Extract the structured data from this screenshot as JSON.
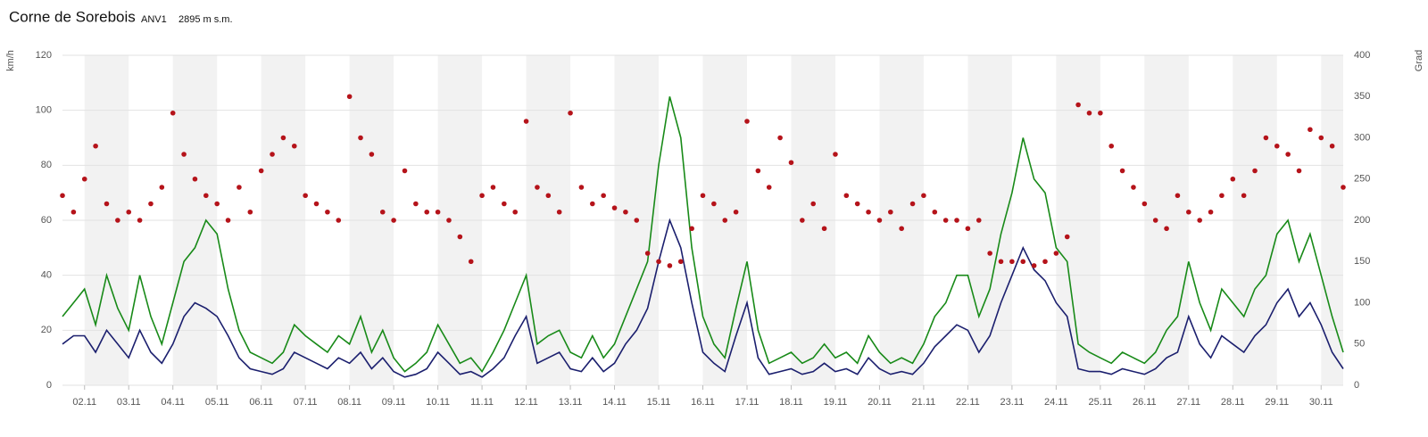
{
  "chart_data": {
    "type": "line",
    "title": "Corne de Sorebois",
    "subtitle": "ANV1",
    "elevation": "2895 m s.m.",
    "y_label": "km/h",
    "y2_label": "Grad",
    "ylim": [
      0,
      120
    ],
    "yticks": [
      0,
      20,
      40,
      60,
      80,
      100,
      120
    ],
    "y2lim": [
      0,
      400
    ],
    "y2ticks": [
      0,
      50,
      100,
      150,
      200,
      250,
      300,
      350,
      400
    ],
    "grid": true,
    "categories": [
      null,
      null,
      "02.11",
      null,
      null,
      null,
      "03.11",
      null,
      null,
      null,
      "04.11",
      null,
      null,
      null,
      "05.11",
      null,
      null,
      null,
      "06.11",
      null,
      null,
      null,
      "07.11",
      null,
      null,
      null,
      "08.11",
      null,
      null,
      null,
      "09.11",
      null,
      null,
      null,
      "10.11",
      null,
      null,
      null,
      "11.11",
      null,
      null,
      null,
      "12.11",
      null,
      null,
      null,
      "13.11",
      null,
      null,
      null,
      "14.11",
      null,
      null,
      null,
      "15.11",
      null,
      null,
      null,
      "16.11",
      null,
      null,
      null,
      "17.11",
      null,
      null,
      null,
      "18.11",
      null,
      null,
      null,
      "19.11",
      null,
      null,
      null,
      "20.11",
      null,
      null,
      null,
      "21.11",
      null,
      null,
      null,
      "22.11",
      null,
      null,
      null,
      "23.11",
      null,
      null,
      null,
      "24.11",
      null,
      null,
      null,
      "25.11",
      null,
      null,
      null,
      "26.11",
      null,
      null,
      null,
      "27.11",
      null,
      null,
      null,
      "28.11",
      null,
      null,
      null,
      "29.11",
      null,
      null,
      null,
      "30.11",
      null,
      null
    ],
    "series": [
      {
        "type": "line",
        "color": "#188a18",
        "values": [
          25,
          30,
          35,
          22,
          40,
          28,
          20,
          40,
          25,
          15,
          30,
          45,
          50,
          60,
          55,
          35,
          20,
          12,
          10,
          8,
          12,
          22,
          18,
          15,
          12,
          18,
          15,
          25,
          12,
          20,
          10,
          5,
          8,
          12,
          22,
          15,
          8,
          10,
          5,
          12,
          20,
          30,
          40,
          15,
          18,
          20,
          12,
          10,
          18,
          10,
          15,
          25,
          35,
          45,
          80,
          105,
          90,
          50,
          25,
          15,
          10,
          28,
          45,
          20,
          8,
          10,
          12,
          8,
          10,
          15,
          10,
          12,
          8,
          18,
          12,
          8,
          10,
          8,
          15,
          25,
          30,
          40,
          40,
          25,
          35,
          55,
          70,
          90,
          75,
          70,
          50,
          45,
          15,
          12,
          10,
          8,
          12,
          10,
          8,
          12,
          20,
          25,
          45,
          30,
          20,
          35,
          30,
          25,
          35,
          40,
          55,
          60,
          45,
          55,
          40,
          25,
          12
        ]
      },
      {
        "type": "line",
        "color": "#1b1f6e",
        "values": [
          15,
          18,
          18,
          12,
          20,
          15,
          10,
          20,
          12,
          8,
          15,
          25,
          30,
          28,
          25,
          18,
          10,
          6,
          5,
          4,
          6,
          12,
          10,
          8,
          6,
          10,
          8,
          12,
          6,
          10,
          5,
          3,
          4,
          6,
          12,
          8,
          4,
          5,
          3,
          6,
          10,
          18,
          25,
          8,
          10,
          12,
          6,
          5,
          10,
          5,
          8,
          15,
          20,
          28,
          45,
          60,
          50,
          30,
          12,
          8,
          5,
          18,
          30,
          10,
          4,
          5,
          6,
          4,
          5,
          8,
          5,
          6,
          4,
          10,
          6,
          4,
          5,
          4,
          8,
          14,
          18,
          22,
          20,
          12,
          18,
          30,
          40,
          50,
          42,
          38,
          30,
          25,
          6,
          5,
          5,
          4,
          6,
          5,
          4,
          6,
          10,
          12,
          25,
          15,
          10,
          18,
          15,
          12,
          18,
          22,
          30,
          35,
          25,
          30,
          22,
          12,
          6
        ]
      },
      {
        "type": "scatter",
        "axis": "y2",
        "color": "#b5131a",
        "values": [
          230,
          210,
          250,
          290,
          220,
          200,
          210,
          200,
          220,
          240,
          330,
          280,
          250,
          230,
          220,
          200,
          240,
          210,
          260,
          280,
          300,
          290,
          230,
          220,
          210,
          200,
          350,
          300,
          280,
          210,
          200,
          260,
          220,
          210,
          210,
          200,
          180,
          150,
          230,
          240,
          220,
          210,
          320,
          240,
          230,
          210,
          330,
          240,
          220,
          230,
          215,
          210,
          200,
          160,
          150,
          145,
          150,
          190,
          230,
          220,
          200,
          210,
          320,
          260,
          240,
          300,
          270,
          200,
          220,
          190,
          280,
          230,
          220,
          210,
          200,
          210,
          190,
          220,
          230,
          210,
          200,
          200,
          190,
          200,
          160,
          150,
          150,
          150,
          145,
          150,
          160,
          180,
          340,
          330,
          330,
          290,
          260,
          240,
          220,
          200,
          190,
          230,
          210,
          200,
          210,
          230,
          250,
          230,
          260,
          300,
          290,
          280,
          260,
          310,
          300,
          290,
          240
        ]
      }
    ]
  }
}
